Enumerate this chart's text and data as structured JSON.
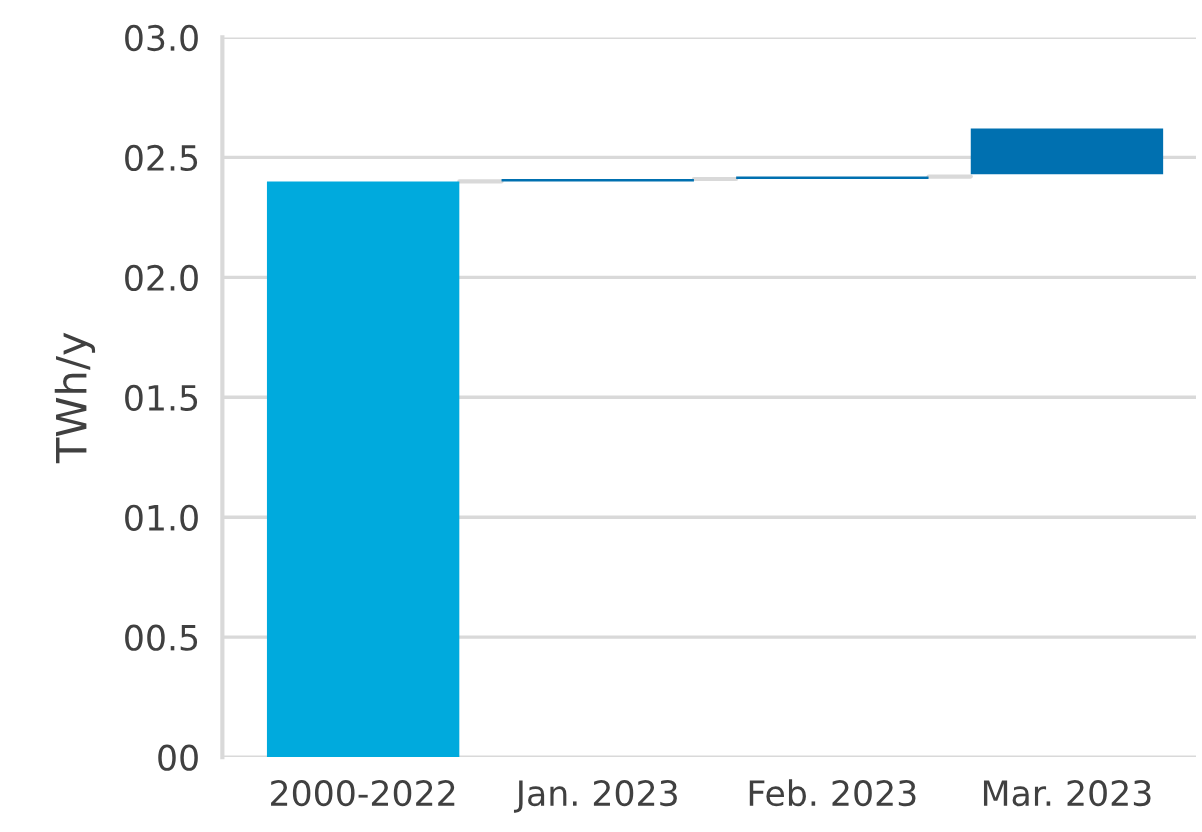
{
  "chart_data": {
    "type": "bar",
    "ylabel": "TWh/y",
    "categories": [
      "2000-2022",
      "Jan. 2023",
      "Feb. 2023",
      "Mar. 2023"
    ],
    "values": [
      2.4,
      0.01,
      0.01,
      0.19
    ],
    "base": [
      0,
      2.4,
      2.41,
      2.43
    ],
    "colors": [
      "#00aadd",
      "#0070b0",
      "#0070b0",
      "#0070b0"
    ],
    "ylim": [
      0,
      3.0
    ],
    "yticks": [
      {
        "value": 0,
        "label": "00"
      },
      {
        "value": 0.5,
        "label": "00.5"
      },
      {
        "value": 1.0,
        "label": "01.0"
      },
      {
        "value": 1.5,
        "label": "01.5"
      },
      {
        "value": 2.0,
        "label": "02.0"
      },
      {
        "value": 2.5,
        "label": "02.5"
      },
      {
        "value": 3.0,
        "label": "03.0"
      }
    ],
    "grid": "y"
  }
}
